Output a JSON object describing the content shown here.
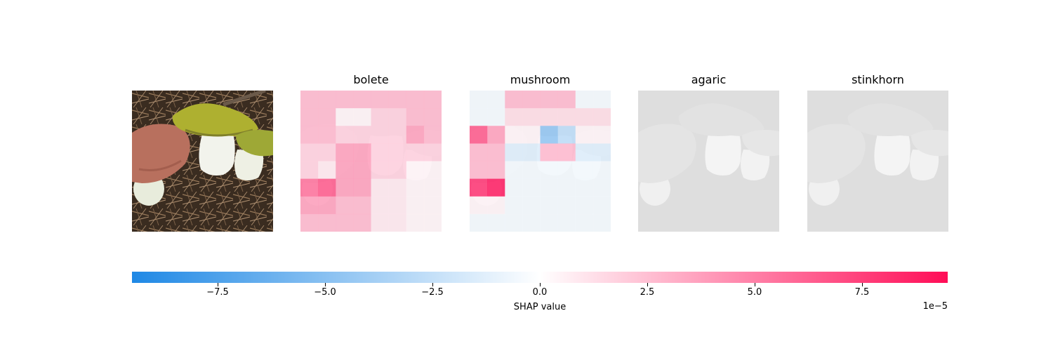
{
  "chart_data": {
    "type": "heatmap",
    "title": "",
    "input_image": "mushroom photo",
    "columns": [
      "bolete",
      "mushroom",
      "agaric",
      "stinkhorn"
    ],
    "colorbar": {
      "label": "SHAP value",
      "offset_text": "1e−5",
      "range": [
        -9.5,
        9.5
      ],
      "ticks": [
        -7.5,
        -5.0,
        -2.5,
        0.0,
        2.5,
        5.0,
        7.5
      ],
      "tick_labels": [
        "−7.5",
        "−5.0",
        "−2.5",
        "0.0",
        "2.5",
        "5.0",
        "7.5"
      ],
      "colors": {
        "negative": "#1e88e5",
        "mid": "#ffffff",
        "positive": "#ff0d57"
      }
    },
    "grid_cells": 8,
    "shap_maps": {
      "bolete": [
        [
          3.0,
          3.0,
          3.0,
          3.0,
          3.0,
          3.0,
          3.0,
          3.0
        ],
        [
          3.0,
          3.0,
          0.5,
          0.5,
          2.0,
          2.0,
          3.0,
          3.0
        ],
        [
          3.0,
          3.0,
          2.0,
          2.0,
          2.0,
          2.0,
          4.0,
          3.0
        ],
        [
          2.0,
          2.0,
          4.0,
          4.0,
          2.0,
          2.0,
          2.0,
          2.0
        ],
        [
          2.0,
          1.0,
          4.0,
          4.0,
          2.0,
          2.0,
          0.5,
          0.5
        ],
        [
          6.0,
          7.0,
          4.0,
          4.0,
          1.0,
          1.0,
          0.5,
          0.5
        ],
        [
          4.0,
          4.0,
          3.0,
          3.0,
          1.0,
          1.0,
          0.5,
          0.5
        ],
        [
          3.0,
          3.0,
          3.0,
          3.0,
          1.0,
          1.0,
          0.5,
          0.5
        ]
      ],
      "mushroom": [
        [
          -0.5,
          -0.5,
          3.0,
          3.0,
          3.0,
          3.0,
          -0.5,
          -0.5
        ],
        [
          -0.5,
          -0.5,
          1.5,
          1.5,
          1.5,
          1.5,
          1.5,
          1.5
        ],
        [
          7.0,
          4.0,
          0.5,
          0.5,
          -5.0,
          -3.0,
          0.5,
          0.5
        ],
        [
          3.0,
          3.0,
          -1.5,
          -1.5,
          3.0,
          3.0,
          -1.5,
          -1.5
        ],
        [
          3.0,
          3.0,
          -0.5,
          -0.5,
          -0.5,
          -0.5,
          -0.5,
          -0.5
        ],
        [
          8.5,
          9.5,
          -0.5,
          -0.5,
          -0.5,
          -0.5,
          -0.5,
          -0.5
        ],
        [
          0.5,
          0.5,
          -0.5,
          -0.5,
          -0.5,
          -0.5,
          -0.5,
          -0.5
        ],
        [
          -0.5,
          -0.5,
          -0.5,
          -0.5,
          -0.5,
          -0.5,
          -0.5,
          -0.5
        ]
      ],
      "agaric": [
        [
          0,
          0,
          0,
          0,
          0,
          0,
          0,
          0
        ],
        [
          0,
          0,
          0,
          0,
          0,
          0,
          0,
          0
        ],
        [
          0,
          0,
          0,
          0,
          0,
          0,
          0,
          0
        ],
        [
          0,
          0,
          0,
          0,
          0,
          0,
          0,
          0
        ],
        [
          0,
          0,
          0,
          0,
          0,
          0,
          0,
          0
        ],
        [
          0,
          0,
          0,
          0,
          0,
          0,
          0,
          0
        ],
        [
          0,
          0,
          0,
          0,
          0,
          0,
          0,
          0
        ],
        [
          0,
          0,
          0,
          0,
          0,
          0,
          0,
          0
        ]
      ],
      "stinkhorn": [
        [
          0,
          0,
          0,
          0,
          0,
          0,
          0,
          0
        ],
        [
          0,
          0,
          0,
          0,
          0,
          0,
          0,
          0
        ],
        [
          0,
          0,
          0,
          0,
          0,
          0,
          0,
          0
        ],
        [
          0,
          0,
          0,
          0,
          0,
          0,
          0,
          0
        ],
        [
          0,
          0,
          0,
          0,
          0,
          0,
          0,
          0
        ],
        [
          0,
          0,
          0,
          0,
          0,
          0,
          0,
          0
        ],
        [
          0,
          0,
          0,
          0,
          0,
          0,
          0,
          0
        ],
        [
          0,
          0,
          0,
          0,
          0,
          0,
          0,
          0
        ]
      ]
    }
  }
}
